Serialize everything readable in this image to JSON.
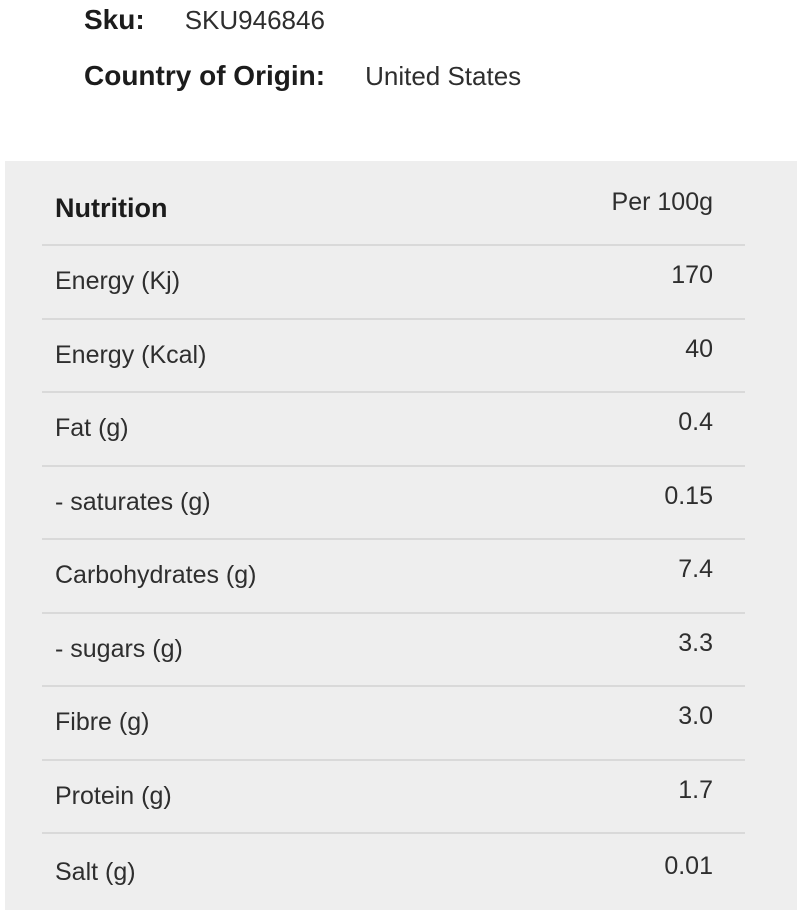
{
  "product_meta": {
    "sku_label": "Sku:",
    "sku_value": "SKU946846",
    "origin_label": "Country of Origin:",
    "origin_value": "United States"
  },
  "nutrition": {
    "title": "Nutrition",
    "column_header": "Per 100g",
    "rows": [
      {
        "label": "Energy (Kj)",
        "value": "170"
      },
      {
        "label": "Energy (Kcal)",
        "value": "40"
      },
      {
        "label": "Fat (g)",
        "value": "0.4"
      },
      {
        "label": "- saturates (g)",
        "value": "0.15"
      },
      {
        "label": "Carbohydrates (g)",
        "value": "7.4"
      },
      {
        "label": "- sugars (g)",
        "value": "3.3"
      },
      {
        "label": "Fibre (g)",
        "value": "3.0"
      },
      {
        "label": "Protein (g)",
        "value": "1.7"
      },
      {
        "label": "Salt (g)",
        "value": "0.01"
      }
    ]
  },
  "colors": {
    "panel_bg": "#eeeeee",
    "divider": "#d9d9d9",
    "text": "#2e2e2e",
    "text_strong": "#1c1c1c"
  }
}
